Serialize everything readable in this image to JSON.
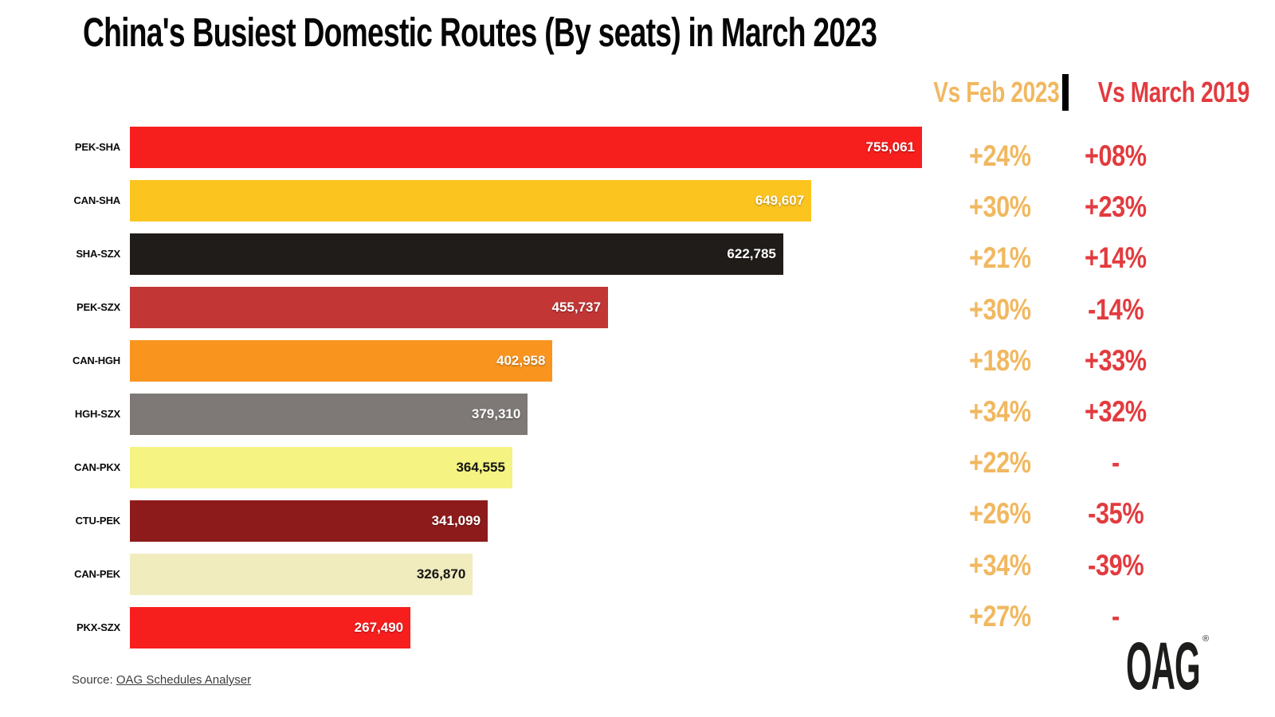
{
  "title": "China's Busiest Domestic Routes (By seats) in March 2023",
  "comparison": {
    "feb_label": "Vs Feb 2023",
    "march_label": "Vs March 2019",
    "feb_color": "#F1B860",
    "march_color": "#E23B3F"
  },
  "rows": [
    {
      "route": "PEK-SHA",
      "value": 755061,
      "value_label": "755,061",
      "bar_color": "#F71E1E",
      "value_text": "light",
      "vs_feb_2023": "+24%",
      "vs_march_2019": "+08%"
    },
    {
      "route": "CAN-SHA",
      "value": 649607,
      "value_label": "649,607",
      "bar_color": "#FCC41E",
      "value_text": "light",
      "vs_feb_2023": "+30%",
      "vs_march_2019": "+23%"
    },
    {
      "route": "SHA-SZX",
      "value": 622785,
      "value_label": "622,785",
      "bar_color": "#201C1A",
      "value_text": "light",
      "vs_feb_2023": "+21%",
      "vs_march_2019": "+14%"
    },
    {
      "route": "PEK-SZX",
      "value": 455737,
      "value_label": "455,737",
      "bar_color": "#C23636",
      "value_text": "light",
      "vs_feb_2023": "+30%",
      "vs_march_2019": "-14%"
    },
    {
      "route": "CAN-HGH",
      "value": 402958,
      "value_label": "402,958",
      "bar_color": "#F9941E",
      "value_text": "light",
      "vs_feb_2023": "+18%",
      "vs_march_2019": "+33%"
    },
    {
      "route": "HGH-SZX",
      "value": 379310,
      "value_label": "379,310",
      "bar_color": "#7E7876",
      "value_text": "light",
      "vs_feb_2023": "+34%",
      "vs_march_2019": "+32%"
    },
    {
      "route": "CAN-PKX",
      "value": 364555,
      "value_label": "364,555",
      "bar_color": "#F5F381",
      "value_text": "dark",
      "vs_feb_2023": "+22%",
      "vs_march_2019": "-"
    },
    {
      "route": "CTU-PEK",
      "value": 341099,
      "value_label": "341,099",
      "bar_color": "#8E1B1B",
      "value_text": "light",
      "vs_feb_2023": "+26%",
      "vs_march_2019": "-35%"
    },
    {
      "route": "CAN-PEK",
      "value": 326870,
      "value_label": "326,870",
      "bar_color": "#F0ECBE",
      "value_text": "dark",
      "vs_feb_2023": "+34%",
      "vs_march_2019": "-39%"
    },
    {
      "route": "PKX-SZX",
      "value": 267490,
      "value_label": "267,490",
      "bar_color": "#F71E1E",
      "value_text": "light",
      "vs_feb_2023": "+27%",
      "vs_march_2019": "-"
    }
  ],
  "chart_data": {
    "type": "bar",
    "orientation": "horizontal",
    "title": "China's Busiest Domestic Routes (By seats) in March 2023",
    "categories": [
      "PEK-SHA",
      "CAN-SHA",
      "SHA-SZX",
      "PEK-SZX",
      "CAN-HGH",
      "HGH-SZX",
      "CAN-PKX",
      "CTU-PEK",
      "CAN-PEK",
      "PKX-SZX"
    ],
    "series": [
      {
        "name": "Seats (March 2023)",
        "values": [
          755061,
          649607,
          622785,
          455737,
          402958,
          379310,
          364555,
          341099,
          326870,
          267490
        ]
      },
      {
        "name": "Vs Feb 2023 (%)",
        "values": [
          24,
          30,
          21,
          30,
          18,
          34,
          22,
          26,
          34,
          27
        ]
      },
      {
        "name": "Vs March 2019 (%)",
        "values": [
          8,
          23,
          14,
          -14,
          33,
          32,
          null,
          -35,
          -39,
          null
        ]
      }
    ],
    "xlim": [
      0,
      755061
    ],
    "grid": false,
    "value_labels_shown": true,
    "legend_position": "column headers top-right",
    "bar_colors": [
      "#F71E1E",
      "#FCC41E",
      "#201C1A",
      "#C23636",
      "#F9941E",
      "#7E7876",
      "#F5F381",
      "#8E1B1B",
      "#F0ECBE",
      "#F71E1E"
    ]
  },
  "source": {
    "prefix": "Source: ",
    "link_text": "OAG Schedules Analyser"
  },
  "logo": {
    "text": "OAG",
    "registered": "®"
  }
}
